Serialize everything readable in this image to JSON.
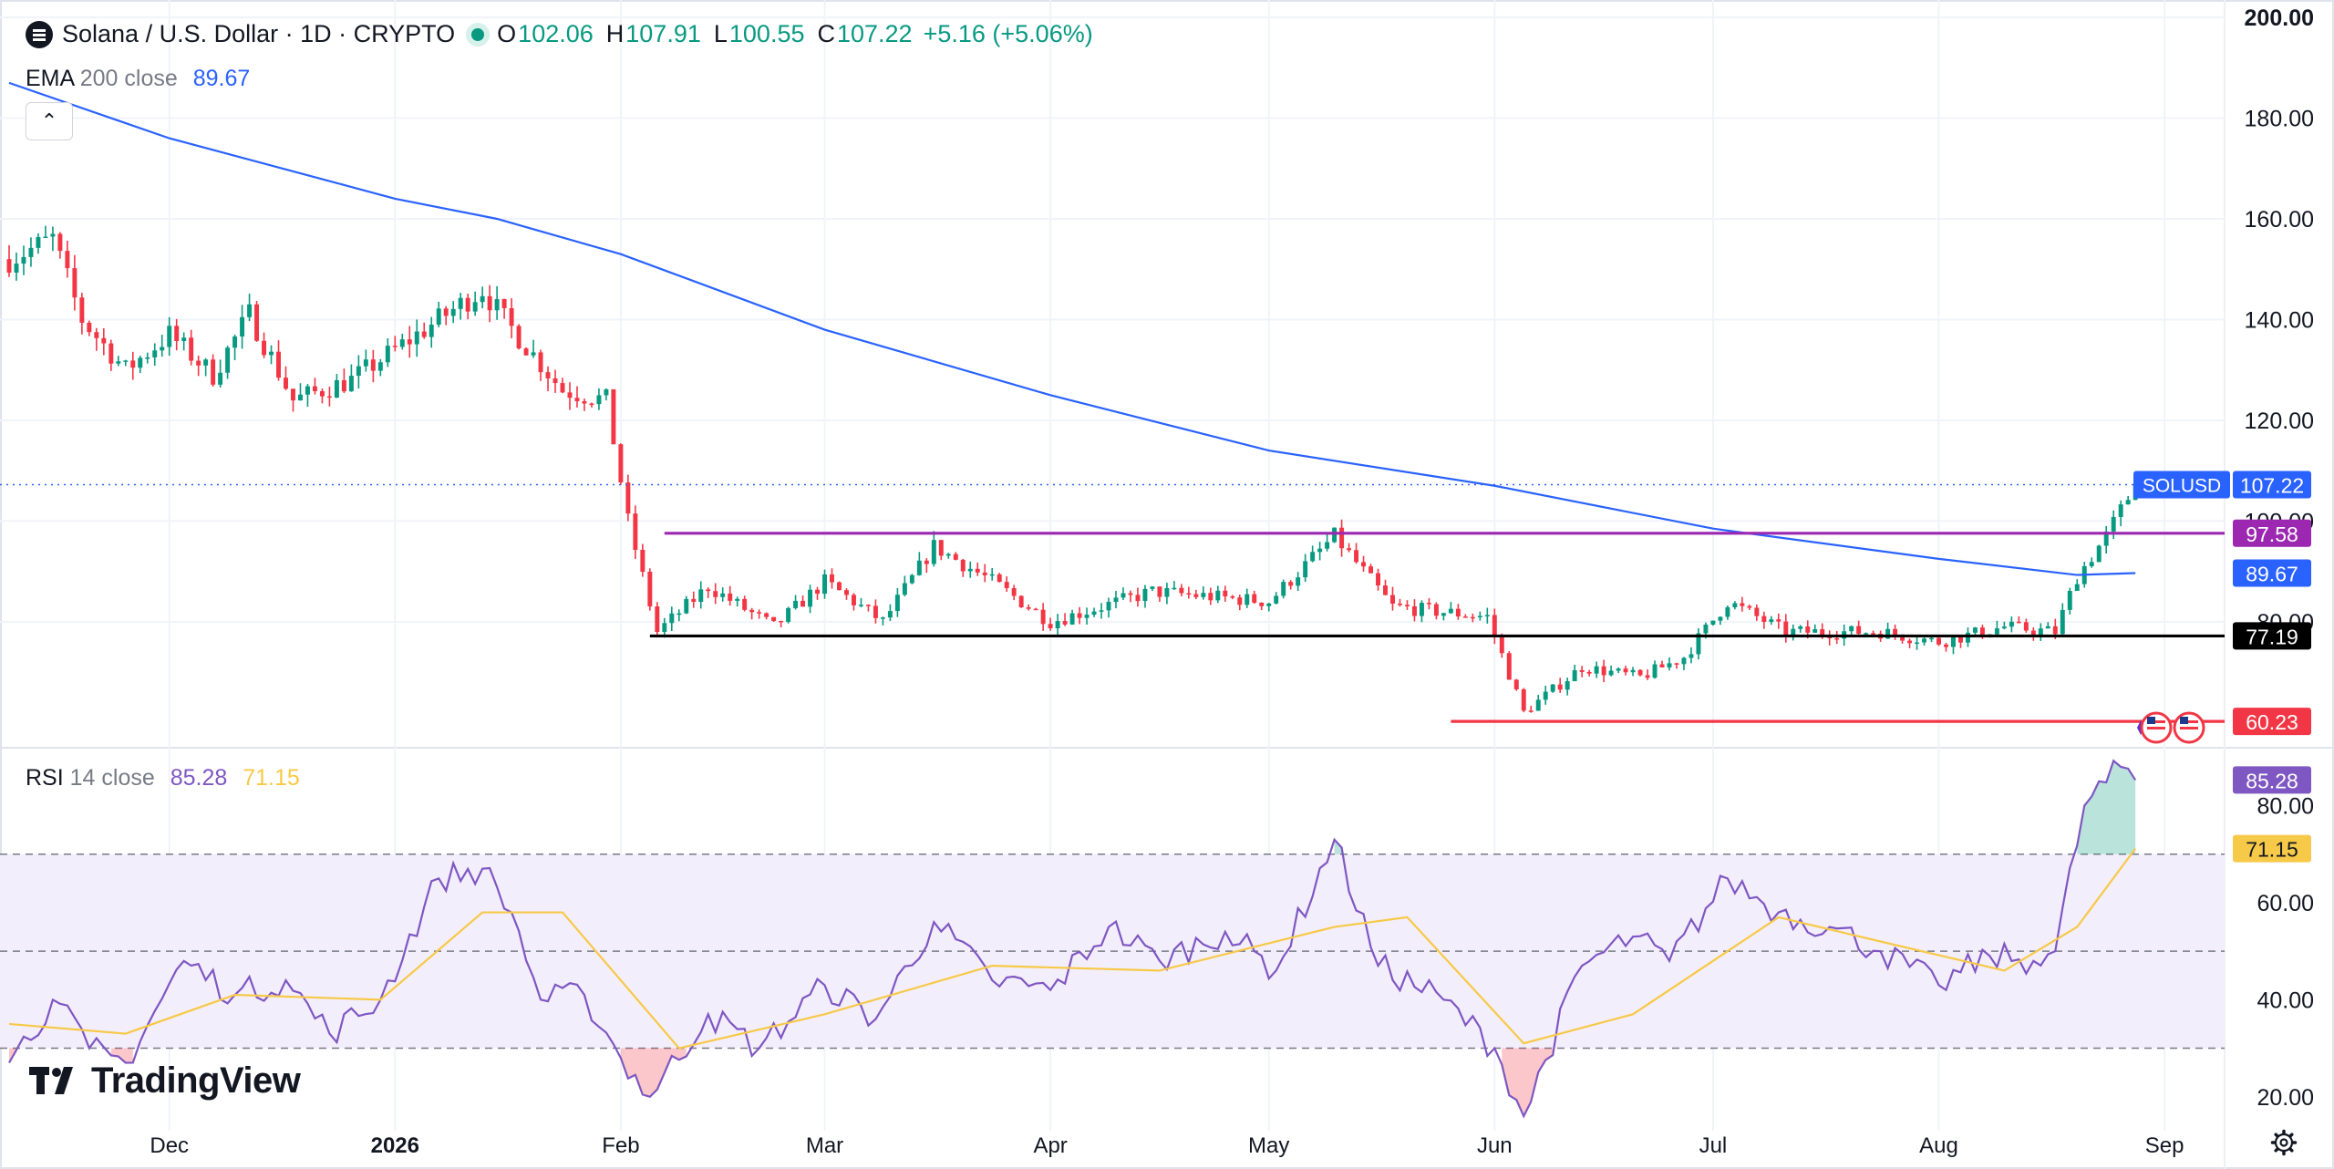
{
  "header": {
    "symbol_title": "Solana / U.S. Dollar · 1D · CRYPTO",
    "ohlc": [
      {
        "k": "O",
        "v": "102.06"
      },
      {
        "k": "H",
        "v": "107.91"
      },
      {
        "k": "L",
        "v": "100.55"
      },
      {
        "k": "C",
        "v": "107.22"
      }
    ],
    "change": "+5.16 (+5.06%)"
  },
  "ema_legend": {
    "label": "EMA",
    "params": "200 close",
    "value": "89.67"
  },
  "rsi_legend": {
    "label": "RSI",
    "params": "14 close",
    "rsi_value": "85.28",
    "ma_value": "71.15"
  },
  "branding": {
    "logo_text": "TradingView"
  },
  "colors": {
    "up": "#089981",
    "down": "#f23645",
    "ema": "#2962ff",
    "rsi": "#7e57c2",
    "rsi_ma": "#f7c948",
    "resistance": "#9c27b0",
    "support": "#000000",
    "low_line": "#f23645"
  },
  "chart_data": [
    {
      "type": "candlestick",
      "title": "Solana / U.S. Dollar · 1D · CRYPTO",
      "price_axis_ticks": [
        "200.00",
        "180.00",
        "160.00",
        "140.00",
        "120.00",
        "100.00",
        "80.00"
      ],
      "ylim": [
        55,
        202
      ],
      "time_axis_ticks": [
        "Dec",
        "2026",
        "Feb",
        "Mar",
        "Apr",
        "May",
        "Jun",
        "Jul",
        "Aug",
        "Sep"
      ],
      "x_range": [
        "2025-11-09",
        "2026-09-09"
      ],
      "last_price": {
        "symbol": "SOLUSD",
        "value": 107.22
      },
      "horizontal_lines": [
        {
          "value": 97.58,
          "label": "97.58",
          "from": "2026-02-07",
          "to": "2026-08-29"
        },
        {
          "value": 77.19,
          "label": "77.19",
          "from": "2026-02-05",
          "to": "2026-08-29"
        },
        {
          "value": 60.23,
          "label": "60.23",
          "from": "2026-05-26",
          "to": "2026-08-29"
        }
      ],
      "ema_200": {
        "name": "EMA 200 close",
        "last_value": 89.67,
        "label": "89.67",
        "points": [
          [
            "2025-11-09",
            187
          ],
          [
            "2025-12-01",
            176
          ],
          [
            "2026-01-01",
            164
          ],
          [
            "2026-01-15",
            160
          ],
          [
            "2026-02-01",
            153
          ],
          [
            "2026-03-01",
            138
          ],
          [
            "2026-04-01",
            125
          ],
          [
            "2026-05-01",
            114
          ],
          [
            "2026-06-01",
            107
          ],
          [
            "2026-07-01",
            98.5
          ],
          [
            "2026-08-01",
            92.5
          ],
          [
            "2026-08-20",
            89.3
          ],
          [
            "2026-08-28",
            89.67
          ]
        ]
      },
      "price_path": [
        [
          "2025-11-09",
          152
        ],
        [
          "2025-11-15",
          156
        ],
        [
          "2025-11-19",
          140
        ],
        [
          "2025-11-25",
          130
        ],
        [
          "2025-12-01",
          137
        ],
        [
          "2025-12-07",
          129
        ],
        [
          "2025-12-12",
          141
        ],
        [
          "2025-12-18",
          124
        ],
        [
          "2025-12-26",
          128
        ],
        [
          "2026-01-06",
          139
        ],
        [
          "2026-01-13",
          146
        ],
        [
          "2026-01-16",
          140
        ],
        [
          "2026-01-24",
          126
        ],
        [
          "2026-01-30",
          124
        ],
        [
          "2026-02-02",
          100
        ],
        [
          "2026-02-06",
          78
        ],
        [
          "2026-02-13",
          87
        ],
        [
          "2026-02-22",
          79
        ],
        [
          "2026-03-01",
          88
        ],
        [
          "2026-03-09",
          80
        ],
        [
          "2026-03-16",
          95
        ],
        [
          "2026-03-24",
          88
        ],
        [
          "2026-04-01",
          80
        ],
        [
          "2026-04-15",
          86
        ],
        [
          "2026-05-01",
          84
        ],
        [
          "2026-05-10",
          97
        ],
        [
          "2026-05-18",
          83
        ],
        [
          "2026-05-31",
          81
        ],
        [
          "2026-06-05",
          62
        ],
        [
          "2026-06-13",
          71
        ],
        [
          "2026-06-21",
          69
        ],
        [
          "2026-06-27",
          73
        ],
        [
          "2026-07-03",
          84
        ],
        [
          "2026-07-11",
          78
        ],
        [
          "2026-07-24",
          78
        ],
        [
          "2026-08-01",
          76
        ],
        [
          "2026-08-10",
          79
        ],
        [
          "2026-08-17",
          78
        ],
        [
          "2026-08-20",
          89
        ],
        [
          "2026-08-24",
          97
        ],
        [
          "2026-08-28",
          107.22
        ]
      ]
    },
    {
      "type": "line",
      "title": "RSI 14 close",
      "axis_ticks": [
        "80.00",
        "60.00",
        "40.00",
        "20.00"
      ],
      "ylim": [
        13,
        91
      ],
      "bands": {
        "upper": 70,
        "middle": 50,
        "lower": 30
      },
      "series": [
        {
          "name": "RSI",
          "last_value": 85.28,
          "label": "85.28",
          "points": [
            [
              "2025-11-09",
              27
            ],
            [
              "2025-11-15",
              40
            ],
            [
              "2025-11-20",
              30
            ],
            [
              "2025-11-25",
              27
            ],
            [
              "2025-12-03",
              48
            ],
            [
              "2025-12-10",
              41
            ],
            [
              "2025-12-17",
              44
            ],
            [
              "2025-12-23",
              33
            ],
            [
              "2025-12-30",
              40
            ],
            [
              "2026-01-07",
              65
            ],
            [
              "2026-01-13",
              67
            ],
            [
              "2026-01-17",
              58
            ],
            [
              "2026-01-21",
              40
            ],
            [
              "2026-01-27",
              41
            ],
            [
              "2026-02-01",
              28
            ],
            [
              "2026-02-05",
              20
            ],
            [
              "2026-02-13",
              37
            ],
            [
              "2026-02-20",
              30
            ],
            [
              "2026-03-01",
              43
            ],
            [
              "2026-03-08",
              36
            ],
            [
              "2026-03-16",
              56
            ],
            [
              "2026-03-24",
              44
            ],
            [
              "2026-04-01",
              42
            ],
            [
              "2026-04-09",
              55
            ],
            [
              "2026-04-16",
              48
            ],
            [
              "2026-04-25",
              54
            ],
            [
              "2026-05-02",
              46
            ],
            [
              "2026-05-10",
              73
            ],
            [
              "2026-05-16",
              47
            ],
            [
              "2026-05-25",
              40
            ],
            [
              "2026-06-01",
              30
            ],
            [
              "2026-06-05",
              16
            ],
            [
              "2026-06-13",
              47
            ],
            [
              "2026-06-20",
              53
            ],
            [
              "2026-06-25",
              48
            ],
            [
              "2026-07-03",
              65
            ],
            [
              "2026-07-10",
              58
            ],
            [
              "2026-07-17",
              55
            ],
            [
              "2026-07-24",
              50
            ],
            [
              "2026-08-01",
              43
            ],
            [
              "2026-08-08",
              49
            ],
            [
              "2026-08-14",
              48
            ],
            [
              "2026-08-17",
              50
            ],
            [
              "2026-08-21",
              80
            ],
            [
              "2026-08-26",
              88
            ],
            [
              "2026-08-28",
              85.28
            ]
          ]
        },
        {
          "name": "RSI-based MA",
          "last_value": 71.15,
          "label": "71.15",
          "points": [
            [
              "2025-11-09",
              35
            ],
            [
              "2025-11-25",
              33
            ],
            [
              "2025-12-10",
              41
            ],
            [
              "2025-12-30",
              40
            ],
            [
              "2026-01-13",
              58
            ],
            [
              "2026-01-24",
              58
            ],
            [
              "2026-02-09",
              30
            ],
            [
              "2026-03-01",
              37
            ],
            [
              "2026-03-24",
              47
            ],
            [
              "2026-04-16",
              46
            ],
            [
              "2026-05-10",
              55
            ],
            [
              "2026-05-20",
              57
            ],
            [
              "2026-06-05",
              31
            ],
            [
              "2026-06-20",
              37
            ],
            [
              "2026-07-10",
              57
            ],
            [
              "2026-07-24",
              52
            ],
            [
              "2026-08-10",
              46
            ],
            [
              "2026-08-20",
              55
            ],
            [
              "2026-08-28",
              71.15
            ]
          ]
        }
      ]
    }
  ]
}
